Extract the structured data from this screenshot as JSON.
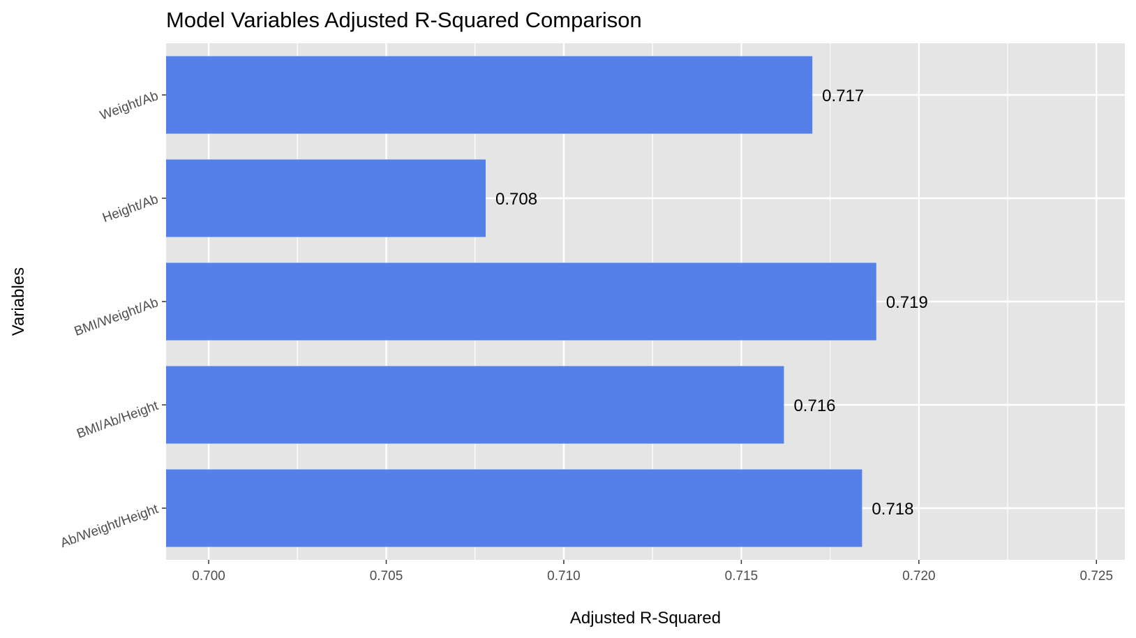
{
  "chart_data": {
    "type": "bar",
    "orientation": "horizontal",
    "title": "Model Variables Adjusted R-Squared Comparison",
    "xlabel": "Adjusted R-Squared",
    "ylabel": "Variables",
    "categories": [
      "Ab/Weight/Height",
      "BMI/Ab/Height",
      "BMI/Weight/Ab",
      "Height/Ab",
      "Weight/Ab"
    ],
    "values": [
      0.7184,
      0.7162,
      0.7188,
      0.7078,
      0.717
    ],
    "value_labels": [
      "0.718",
      "0.716",
      "0.719",
      "0.708",
      "0.717"
    ],
    "xlim": [
      0.6988,
      0.7258
    ],
    "xticks": [
      0.7,
      0.705,
      0.71,
      0.715,
      0.72,
      0.725
    ],
    "xtick_labels": [
      "0.700",
      "0.705",
      "0.710",
      "0.715",
      "0.720",
      "0.725"
    ],
    "grid": true,
    "legend": "none",
    "colors": {
      "bar": "#5480e8",
      "panel": "#e5e5e5",
      "grid": "#ffffff"
    }
  }
}
